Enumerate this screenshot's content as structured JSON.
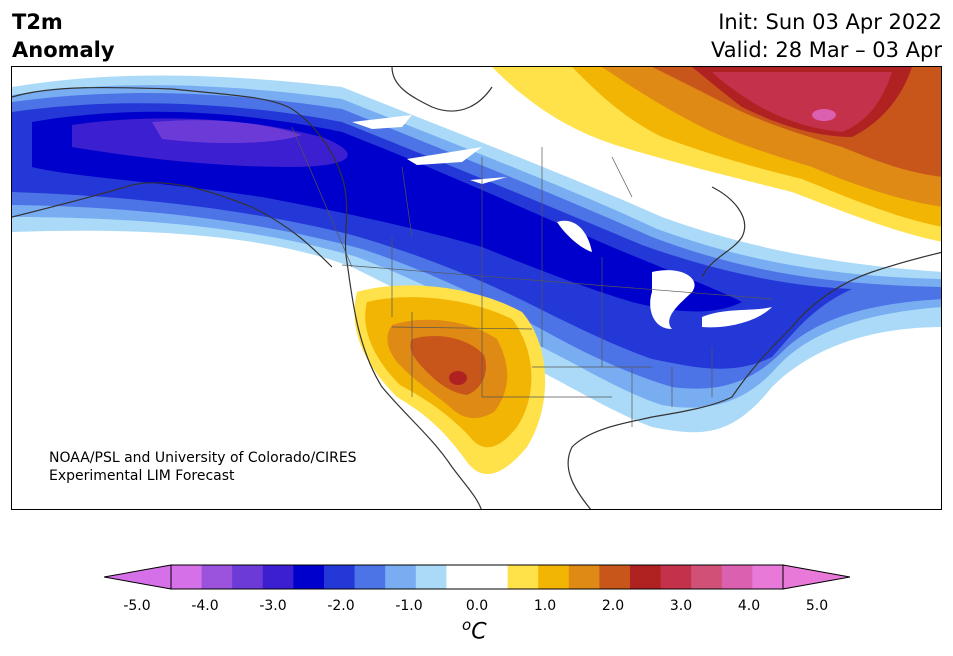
{
  "header": {
    "title_line1": "T2m",
    "title_line2": "Anomaly",
    "init_label": "Init: Sun 03 Apr 2022",
    "valid_label": "Valid: 28 Mar – 03 Apr"
  },
  "credit": {
    "line1": "NOAA/PSL and University of Colorado/CIRES",
    "line2": "Experimental LIM Forecast"
  },
  "colorbar": {
    "unit_base": "C",
    "unit_sup": "o",
    "ticks": [
      "-5.0",
      "-4.0",
      "-3.0",
      "-2.0",
      "-1.0",
      "0.0",
      "1.0",
      "2.0",
      "3.0",
      "4.0",
      "5.0"
    ],
    "colors": [
      "#d670e8",
      "#9b52dc",
      "#6c3ad6",
      "#3c1fd0",
      "#0000cc",
      "#2438d8",
      "#4d74e6",
      "#78adf2",
      "#abdaf8",
      "#ffffff",
      "#ffffff",
      "#ffe14a",
      "#f2b503",
      "#de8a14",
      "#c8561a",
      "#b02222",
      "#c3324a",
      "#d05078",
      "#dc60b0",
      "#e879d8"
    ],
    "under_color": "#d670e8",
    "over_color": "#e879d8"
  },
  "map": {
    "region": "North America",
    "variable": "2m temperature anomaly"
  }
}
